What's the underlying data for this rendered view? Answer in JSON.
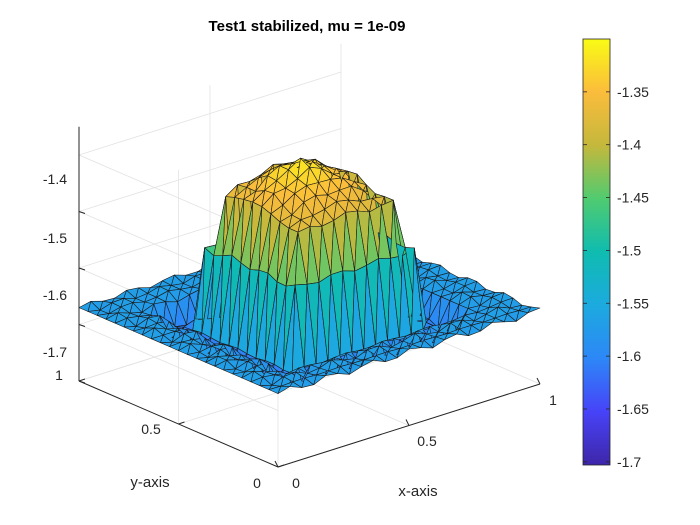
{
  "chart_data": {
    "type": "surface",
    "title": "Test1 stabilized, mu = 1e-09",
    "xlabel": "x-axis",
    "ylabel": "y-axis",
    "zlabel": "",
    "xlim": [
      0,
      1
    ],
    "ylim": [
      0,
      1
    ],
    "zlim": [
      -1.7,
      -1.3
    ],
    "x_ticks": [
      "0",
      "0.5",
      "1"
    ],
    "y_ticks": [
      "0",
      "0.5",
      "1"
    ],
    "z_ticks": [
      "-1.7",
      "-1.6",
      "-1.5",
      "-1.4"
    ],
    "colorbar": {
      "limits": [
        -1.703,
        -1.3
      ],
      "ticks": [
        "-1.35",
        "-1.4",
        "-1.45",
        "-1.5",
        "-1.55",
        "-1.6",
        "-1.65",
        "-1.7"
      ],
      "colormap": "parula"
    },
    "grid": true,
    "surface": {
      "description_values": {
        "background_level": -1.57,
        "plateau_region": {
          "x": [
            0.25,
            0.75
          ],
          "y": [
            0.25,
            0.75
          ]
        },
        "plateau_level": -1.38,
        "peak_level": -1.3,
        "trough_level": -1.62
      }
    }
  }
}
